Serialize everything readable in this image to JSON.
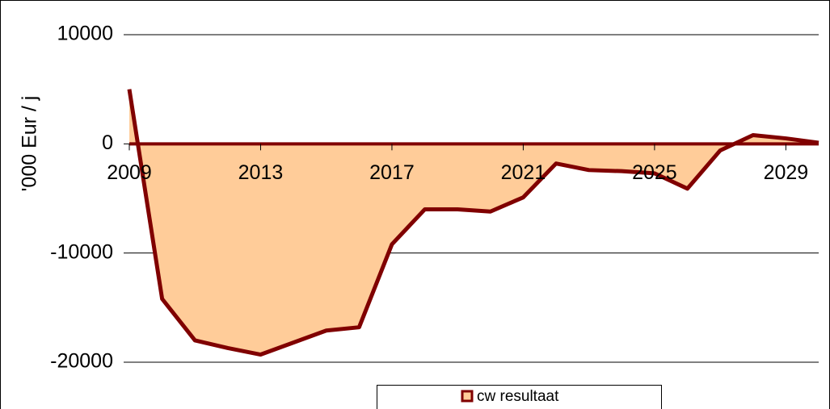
{
  "chart_data": {
    "type": "area",
    "y_label": "'000 Eur / j",
    "x": [
      2009,
      2010,
      2011,
      2012,
      2013,
      2014,
      2015,
      2016,
      2017,
      2018,
      2019,
      2020,
      2021,
      2022,
      2023,
      2024,
      2025,
      2026,
      2027,
      2028,
      2029,
      2030
    ],
    "series": [
      {
        "name": "cw resultaat",
        "color": "#800000",
        "fill": "#ffcc99",
        "values": [
          5000,
          -14200,
          -18000,
          -18700,
          -19300,
          -18200,
          -17100,
          -16800,
          -9200,
          -6000,
          -6000,
          -6200,
          -4900,
          -1800,
          -2400,
          -2500,
          -2700,
          -4100,
          -600,
          800,
          500,
          100
        ]
      }
    ],
    "xlim": [
      2009,
      2030
    ],
    "xticks": [
      2009,
      2013,
      2017,
      2021,
      2025,
      2029
    ],
    "ylim": [
      -20000,
      10000
    ],
    "yticks": [
      -20000,
      -10000,
      0,
      10000
    ],
    "grid": true,
    "legend": "bottom"
  }
}
